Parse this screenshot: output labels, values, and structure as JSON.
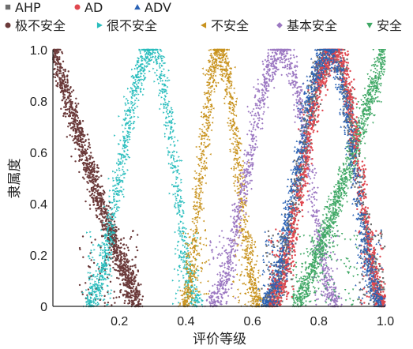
{
  "chart_data": {
    "type": "scatter",
    "title": "",
    "xlabel": "评价等级",
    "ylabel": "隶属度",
    "xlim": [
      0,
      1.0
    ],
    "ylim": [
      0,
      1.0
    ],
    "x_ticks": [
      {
        "value": 0.2,
        "label": "0.2"
      },
      {
        "value": 0.4,
        "label": "0.4"
      },
      {
        "value": 0.6,
        "label": "0.6"
      },
      {
        "value": 0.8,
        "label": "0.8"
      },
      {
        "value": 1.0,
        "label": "1.0"
      }
    ],
    "y_ticks": [
      {
        "value": 0,
        "label": "0"
      },
      {
        "value": 0.2,
        "label": "0.2"
      },
      {
        "value": 0.4,
        "label": "0.4"
      },
      {
        "value": 0.6,
        "label": "0.6"
      },
      {
        "value": 0.8,
        "label": "0.8"
      },
      {
        "value": 1.0,
        "label": "1.0"
      }
    ],
    "grid": false,
    "legend_position": "top",
    "legend_rows": [
      [
        "AHP",
        "AD",
        "ADV"
      ],
      [
        "极不安全",
        "很不安全",
        "不安全",
        "基本安全",
        "安全"
      ]
    ],
    "series": [
      {
        "name": "AHP",
        "marker": "square",
        "color": "#6e6e6e"
      },
      {
        "name": "AD",
        "marker": "circle",
        "color": "#e0474f"
      },
      {
        "name": "ADV",
        "marker": "triangle",
        "color": "#2a62b5"
      },
      {
        "name": "极不安全",
        "marker": "circle",
        "color": "#6b3a3a",
        "shape": "descending",
        "peak": 0.0,
        "zero": 0.26
      },
      {
        "name": "很不安全",
        "marker": "triangle-right",
        "color": "#29bdbd",
        "shape": "bell",
        "peak": 0.3,
        "zero_left": 0.1,
        "zero_right": 0.44
      },
      {
        "name": "不安全",
        "marker": "triangle-left",
        "color": "#c8921d",
        "shape": "bell",
        "peak": 0.5,
        "zero_left": 0.39,
        "zero_right": 0.62
      },
      {
        "name": "基本安全",
        "marker": "diamond",
        "color": "#9c78c2",
        "shape": "bell",
        "peak": 0.69,
        "zero_left": 0.47,
        "zero_right": 0.86
      },
      {
        "name": "安全",
        "marker": "triangle-down",
        "color": "#3fa865",
        "shape": "ascending",
        "peak": 1.0,
        "zero": 0.73
      },
      {
        "name": "AHP",
        "marker": "square",
        "color": "#6e6e6e",
        "shape": "bell",
        "peak": 0.84,
        "zero_left": 0.64,
        "zero_right": 1.0
      },
      {
        "name": "AD",
        "marker": "circle",
        "color": "#e0474f",
        "shape": "bell",
        "peak": 0.85,
        "zero_left": 0.65,
        "zero_right": 1.0
      },
      {
        "name": "ADV",
        "marker": "triangle",
        "color": "#2a62b5",
        "shape": "bell",
        "peak": 0.83,
        "zero_left": 0.63,
        "zero_right": 0.99
      }
    ]
  }
}
